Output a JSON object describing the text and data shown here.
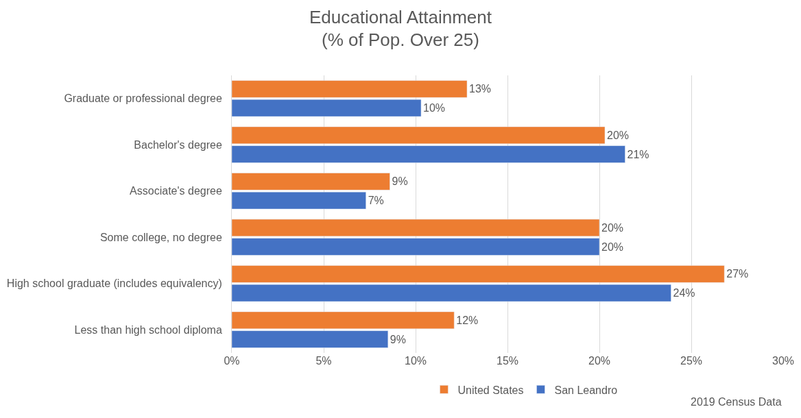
{
  "chart_data": {
    "type": "bar",
    "orientation": "horizontal",
    "title": "Educational Attainment\n(% of Pop. Over 25)",
    "categories": [
      "Graduate or professional degree",
      "Bachelor's degree",
      "Associate's degree",
      "Some college, no degree",
      "High school graduate (includes equivalency)",
      "Less than high school diploma"
    ],
    "series": [
      {
        "name": "United States",
        "color": "#ed7d31",
        "values": [
          12.8,
          20.3,
          8.6,
          20.0,
          26.8,
          12.1
        ],
        "value_labels": [
          "13%",
          "20%",
          "9%",
          "20%",
          "27%",
          "12%"
        ]
      },
      {
        "name": "San Leandro",
        "color": "#4472c4",
        "values": [
          10.3,
          21.4,
          7.3,
          20.0,
          23.9,
          8.5
        ],
        "value_labels": [
          "10%",
          "21%",
          "7%",
          "20%",
          "24%",
          "9%"
        ]
      }
    ],
    "xlim": [
      0,
      30
    ],
    "xticks": [
      {
        "value": 0,
        "label": "0%"
      },
      {
        "value": 5,
        "label": "5%"
      },
      {
        "value": 10,
        "label": "10%"
      },
      {
        "value": 15,
        "label": "15%"
      },
      {
        "value": 20,
        "label": "20%"
      },
      {
        "value": 25,
        "label": "25%"
      },
      {
        "value": 30,
        "label": "30%"
      }
    ],
    "grid": "x",
    "legend": "bottom left",
    "annotations": [
      "2019 Census Data"
    ]
  }
}
